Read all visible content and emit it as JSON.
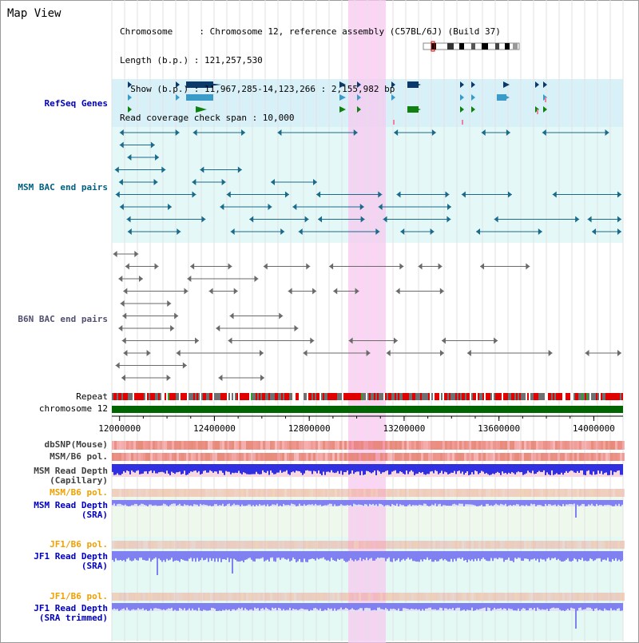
{
  "title": "Map View",
  "info": {
    "chromosome": "Chromosome     : Chromosome 12, reference assembly (C57BL/6J) (Build 37)",
    "length": "Length (b.p.) : 121,257,530",
    "show": "  Show (b.p.) : 11,967,285-14,123,266 : 2,155,982 bp",
    "coverage": "Read coverage check span : 10,000"
  },
  "tracks": {
    "refseq": "RefSeq Genes",
    "msm_bac": "MSM BAC end pairs",
    "b6n_bac": "B6N BAC end pairs",
    "repeat": "Repeat",
    "chromosome": "chromosome 12",
    "dbsnp": "dbSNP(Mouse)",
    "msm_b6_pol": "MSM/B6 pol.",
    "msm_depth_cap": "MSM Read Depth\n(Capillary)",
    "msm_b6_pol2": "MSM/B6 pol.",
    "msm_depth_sra": "MSM Read Depth\n(SRA)",
    "jf1_b6_pol": "JF1/B6 pol.",
    "jf1_depth_sra": "JF1 Read Depth\n(SRA)",
    "jf1_b6_pol2": "JF1/B6 pol.",
    "jf1_depth_trim": "JF1 Read Depth\n(SRA trimmed)"
  },
  "axis": {
    "ticks": [
      "12000000",
      "12400000",
      "12800000",
      "13200000",
      "13600000",
      "14000000"
    ],
    "tick_values": [
      12000000,
      12400000,
      12800000,
      13200000,
      13600000,
      14000000
    ],
    "range": [
      11967285,
      14123266
    ]
  },
  "colors": {
    "refseq_bg": "#d8f0f8",
    "bac_bg": "#e4f8f8",
    "highlight": "#f8c8f0",
    "msm_label": "#0000c0",
    "msm_bac_label": "#006080",
    "b6n_label": "#505070",
    "jf1_pol_label": "#f0a000",
    "chromosome_bar": "#006400",
    "depth_blue": "#3030e0",
    "depth_light": "#8080f0"
  }
}
